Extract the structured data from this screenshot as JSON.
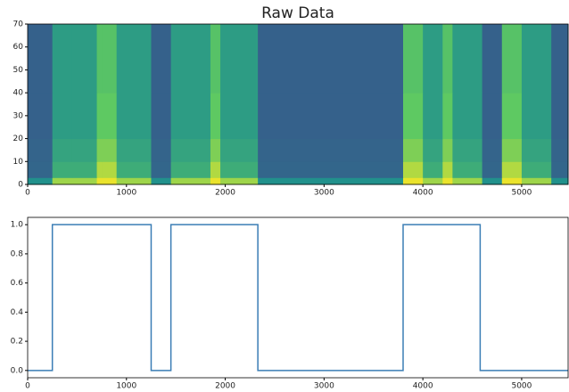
{
  "chart_data": [
    {
      "type": "heatmap",
      "title": "Raw Data",
      "xbins": [
        0,
        250,
        450,
        700,
        750,
        900,
        1250,
        1450,
        1850,
        1950,
        2330,
        3800,
        4000,
        4200,
        4300,
        4600,
        4800,
        5000,
        5300,
        5470
      ],
      "ybins": [
        0,
        3,
        10,
        20,
        40,
        70
      ],
      "values": [
        [
          0.5,
          0.85,
          0.85,
          0.97,
          0.97,
          0.85,
          0.5,
          0.85,
          0.97,
          0.85,
          0.5,
          0.97,
          0.85,
          0.97,
          0.85,
          0.5,
          0.97,
          0.85,
          0.5
        ],
        [
          0.33,
          0.62,
          0.62,
          0.88,
          0.88,
          0.62,
          0.33,
          0.62,
          0.88,
          0.62,
          0.33,
          0.88,
          0.62,
          0.88,
          0.62,
          0.33,
          0.88,
          0.62,
          0.33
        ],
        [
          0.32,
          0.58,
          0.58,
          0.8,
          0.8,
          0.58,
          0.32,
          0.58,
          0.8,
          0.58,
          0.32,
          0.8,
          0.58,
          0.8,
          0.58,
          0.32,
          0.8,
          0.58,
          0.32
        ],
        [
          0.31,
          0.55,
          0.55,
          0.75,
          0.75,
          0.55,
          0.31,
          0.55,
          0.75,
          0.55,
          0.31,
          0.75,
          0.55,
          0.75,
          0.55,
          0.31,
          0.75,
          0.55,
          0.31
        ],
        [
          0.31,
          0.55,
          0.55,
          0.72,
          0.72,
          0.55,
          0.31,
          0.55,
          0.72,
          0.55,
          0.31,
          0.72,
          0.55,
          0.72,
          0.55,
          0.31,
          0.72,
          0.55,
          0.31
        ]
      ],
      "xlim": [
        0,
        5470
      ],
      "ylim": [
        0,
        70
      ],
      "xticks": [
        0,
        1000,
        2000,
        3000,
        4000,
        5000
      ],
      "yticks": [
        0,
        10,
        20,
        30,
        40,
        50,
        60,
        70
      ]
    },
    {
      "type": "line",
      "x": [
        0,
        250,
        250,
        1250,
        1250,
        1450,
        1450,
        2330,
        2330,
        3800,
        3800,
        4580,
        4580,
        5470
      ],
      "series": [
        {
          "color": "#3a7db5",
          "values": [
            0,
            0,
            1,
            1,
            0,
            0,
            1,
            1,
            0,
            0,
            1,
            1,
            0,
            0
          ]
        }
      ],
      "xlim": [
        0,
        5470
      ],
      "ylim": [
        -0.05,
        1.05
      ],
      "xticks": [
        0,
        1000,
        2000,
        3000,
        4000,
        5000
      ],
      "yticks": [
        {
          "value": 0,
          "label": "0.0"
        },
        {
          "value": 0.2,
          "label": "0.2"
        },
        {
          "value": 0.4,
          "label": "0.4"
        },
        {
          "value": 0.6,
          "label": "0.6"
        },
        {
          "value": 0.8,
          "label": "0.8"
        },
        {
          "value": 1,
          "label": "1.0"
        }
      ]
    }
  ]
}
